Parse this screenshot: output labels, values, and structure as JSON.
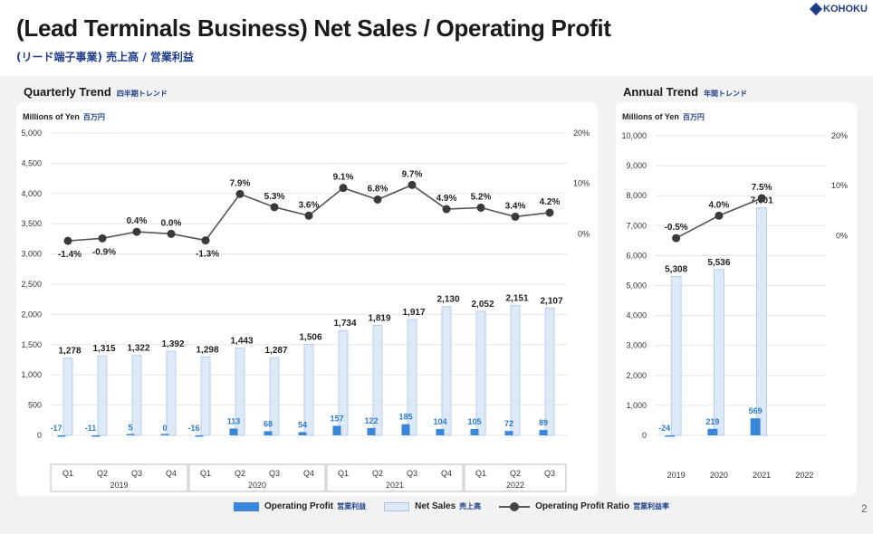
{
  "header": {
    "title": "(Lead Terminals Business) Net Sales / Operating Profit",
    "subtitle": "(リード端子事業) 売上高 / 営業利益",
    "logo_text": "KOHOKU"
  },
  "quarterly": {
    "title": "Quarterly Trend",
    "title_jp": "四半期トレンド",
    "unit": "Millions of Yen",
    "unit_jp": "百万円"
  },
  "annual": {
    "title": "Annual Trend",
    "title_jp": "年間トレンド",
    "unit": "Millions of Yen",
    "unit_jp": "百万円"
  },
  "legend": {
    "operating_profit": "Operating Profit",
    "operating_profit_jp": "営業利益",
    "net_sales": "Net Sales",
    "net_sales_jp": "売上高",
    "ratio": "Operating Profit Ratio",
    "ratio_jp": "営業利益率"
  },
  "page_number": "2",
  "colors": {
    "op_bar": "#3a86d9",
    "ns_bar": "#dde9f7",
    "ns_border": "#a8c6e8",
    "line": "#555555",
    "label_blue": "#2e7bd1"
  },
  "chart_data": [
    {
      "type": "bar",
      "name": "quarterly",
      "categories": [
        "Q1",
        "Q2",
        "Q3",
        "Q4",
        "Q1",
        "Q2",
        "Q3",
        "Q4",
        "Q1",
        "Q2",
        "Q3",
        "Q4",
        "Q1",
        "Q2",
        "Q3"
      ],
      "years": [
        {
          "label": "2019",
          "count": 4
        },
        {
          "label": "2020",
          "count": 4
        },
        {
          "label": "2021",
          "count": 4
        },
        {
          "label": "2022",
          "count": 3
        }
      ],
      "series": [
        {
          "name": "Net Sales",
          "values": [
            1278,
            1315,
            1322,
            1392,
            1298,
            1443,
            1287,
            1506,
            1734,
            1819,
            1917,
            2130,
            2052,
            2151,
            2107
          ],
          "labels": [
            "1,278",
            "1,315",
            "1,322",
            "1,392",
            "1,298",
            "1,443",
            "1,287",
            "1,506",
            "1,734",
            "1,819",
            "1,917",
            "2,130",
            "2,052",
            "2,151",
            "2,107"
          ]
        },
        {
          "name": "Operating Profit",
          "values": [
            -17,
            -11,
            5,
            0,
            -16,
            113,
            68,
            54,
            157,
            122,
            185,
            104,
            105,
            72,
            89
          ],
          "labels": [
            "-17",
            "-11",
            "5",
            "0",
            "-16",
            "113",
            "68",
            "54",
            "157",
            "122",
            "185",
            "104",
            "105",
            "72",
            "89"
          ]
        },
        {
          "name": "Operating Profit Ratio",
          "values": [
            -1.4,
            -0.9,
            0.4,
            0.0,
            -1.3,
            7.9,
            5.3,
            3.6,
            9.1,
            6.8,
            9.7,
            4.9,
            5.2,
            3.4,
            4.2
          ],
          "labels": [
            "-1.4%",
            "-0.9%",
            "0.4%",
            "0.0%",
            "-1.3%",
            "7.9%",
            "5.3%",
            "3.6%",
            "9.1%",
            "6.8%",
            "9.7%",
            "4.9%",
            "5.2%",
            "3.4%",
            "4.2%"
          ]
        }
      ],
      "ylim": [
        0,
        5000
      ],
      "yticks": [
        "0",
        "500",
        "1,000",
        "1,500",
        "2,000",
        "2,500",
        "3,000",
        "3,500",
        "4,000",
        "4,500",
        "5,000"
      ],
      "y2lim": [
        -40,
        20
      ],
      "y2ticks": [
        "0%",
        "10%",
        "20%"
      ],
      "grid": true,
      "legend_position": "bottom"
    },
    {
      "type": "bar",
      "name": "annual",
      "categories": [
        "2019",
        "2020",
        "2021",
        "2022"
      ],
      "series": [
        {
          "name": "Net Sales",
          "values": [
            5308,
            5536,
            7601,
            null
          ],
          "labels": [
            "5,308",
            "5,536",
            "7,601",
            ""
          ]
        },
        {
          "name": "Operating Profit",
          "values": [
            -24,
            219,
            569,
            null
          ],
          "labels": [
            "-24",
            "219",
            "569",
            ""
          ]
        },
        {
          "name": "Operating Profit Ratio",
          "values": [
            -0.5,
            4.0,
            7.5,
            null
          ],
          "labels": [
            "-0.5%",
            "4.0%",
            "7.5%",
            ""
          ]
        }
      ],
      "ylim": [
        0,
        10000
      ],
      "yticks": [
        "0",
        "1,000",
        "2,000",
        "3,000",
        "4,000",
        "5,000",
        "6,000",
        "7,000",
        "8,000",
        "9,000",
        "10,000"
      ],
      "y2lim": [
        -40,
        20
      ],
      "y2ticks": [
        "0%",
        "10%",
        "20%"
      ],
      "grid": true,
      "legend_position": "bottom"
    }
  ]
}
